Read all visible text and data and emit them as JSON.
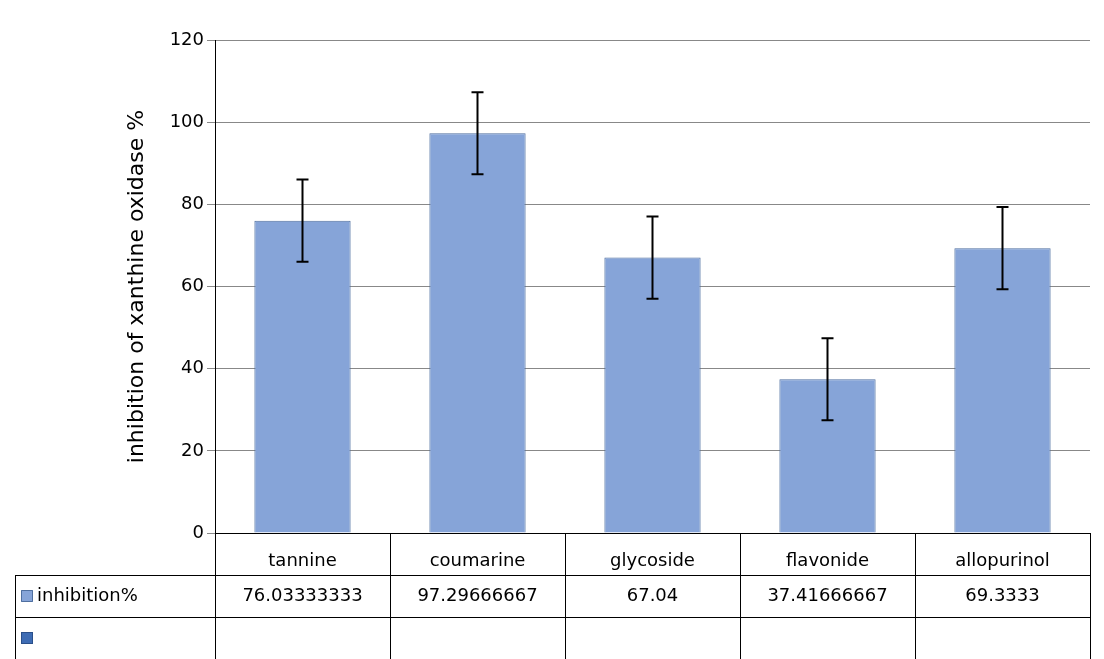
{
  "chart_data": {
    "type": "bar",
    "ylabel": "inhibition of xanthine oxidase %",
    "categories": [
      "tannine",
      "coumarine",
      "glycoside",
      "flavonide",
      "allopurinol"
    ],
    "series": [
      {
        "name": "inhibition%",
        "color": "#86a4d8",
        "values": [
          76.03333333,
          97.29666667,
          67.04,
          37.41666667,
          69.3333
        ],
        "errors": [
          10,
          10,
          10,
          10,
          10
        ]
      }
    ],
    "ylim": [
      0,
      120
    ],
    "yticks": [
      0,
      20,
      40,
      60,
      80,
      100,
      120
    ],
    "grid": "y",
    "data_labels": true
  }
}
